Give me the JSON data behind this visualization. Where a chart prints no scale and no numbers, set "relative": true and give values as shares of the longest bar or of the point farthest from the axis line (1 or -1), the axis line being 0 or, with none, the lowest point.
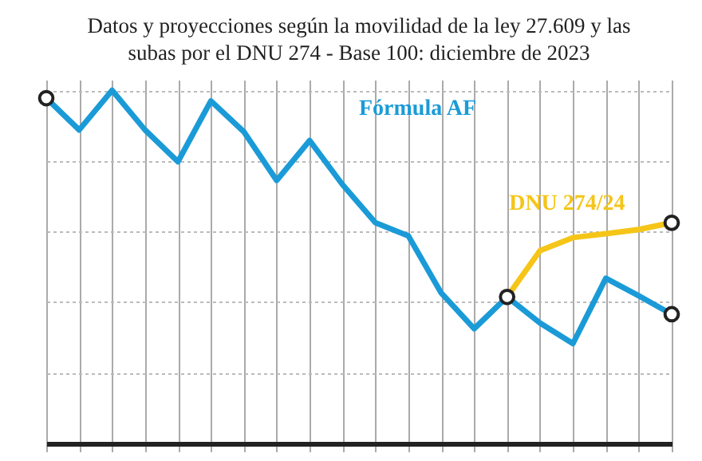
{
  "chart_data": {
    "type": "line",
    "title": "Datos y proyecciones según la movilidad de la ley 27.609 y las subas por el DNU 274 - Base 100: diciembre de 2023",
    "relative": true,
    "grid": true,
    "categories": [
      null,
      null,
      null,
      null,
      null,
      null,
      null,
      null,
      null,
      null,
      null,
      null,
      null,
      null,
      null,
      null,
      null,
      null,
      null,
      null
    ],
    "series": [
      {
        "name": "Fórmula AF",
        "color": "#1a9bd7",
        "values": [
          0.978,
          0.888,
          1,
          0.888,
          0.798,
          0.97,
          0.883,
          0.745,
          0.858,
          0.733,
          0.625,
          0.588,
          0.426,
          0.325,
          0.415,
          0.341,
          0.283,
          0.468,
          0.418,
          0.366
        ]
      },
      {
        "name": "DNU 274/24",
        "color": "#f5c518",
        "values": [
          null,
          null,
          null,
          null,
          null,
          null,
          null,
          null,
          null,
          null,
          null,
          null,
          null,
          null,
          0.415,
          0.546,
          0.583,
          0.594,
          0.606,
          0.625
        ]
      }
    ]
  }
}
